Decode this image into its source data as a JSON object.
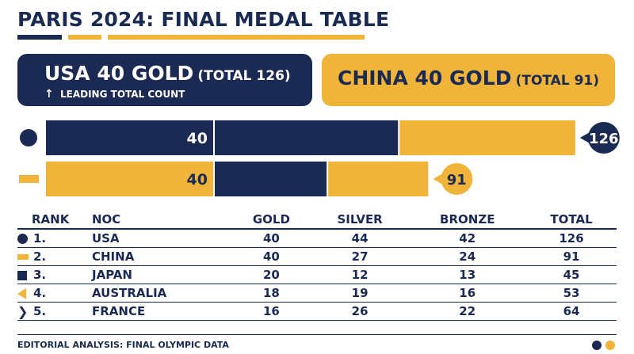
{
  "title": "PARIS 2024: FINAL MEDAL TABLE",
  "colors": {
    "navy": "#1b2a52",
    "gold": "#f0b43a",
    "white": "#ffffff"
  },
  "cards": {
    "usa": {
      "headline": "USA 40 GOLD",
      "total": "(TOTAL 126)",
      "subtitle": "LEADING TOTAL COUNT",
      "icon": "arrow-up-icon"
    },
    "china": {
      "headline": "CHINA 40 GOLD",
      "total": "(TOTAL 91)"
    }
  },
  "chart_data": {
    "type": "bar",
    "orientation": "horizontal",
    "stacked": true,
    "categories": [
      "USA",
      "CHINA"
    ],
    "series": [
      {
        "name": "GOLD",
        "values": [
          40,
          40
        ]
      },
      {
        "name": "SILVER",
        "values": [
          44,
          27
        ]
      },
      {
        "name": "BRONZE",
        "values": [
          42,
          24
        ]
      }
    ],
    "totals": [
      126,
      91
    ],
    "data_labels": [
      "40",
      "40"
    ],
    "total_labels": [
      "126",
      "91"
    ],
    "grid": false,
    "legend": "none"
  },
  "table": {
    "headers": {
      "rank": "RANK",
      "noc": "NOC",
      "gold": "GOLD",
      "silver": "SILVER",
      "bronze": "BRONZE",
      "total": "TOTAL"
    },
    "rows": [
      {
        "icon": "circle-icon",
        "rank": "1.",
        "noc": "USA",
        "gold": "40",
        "silver": "44",
        "bronze": "42",
        "total": "126"
      },
      {
        "icon": "bar-icon",
        "rank": "2.",
        "noc": "CHINA",
        "gold": "40",
        "silver": "27",
        "bronze": "24",
        "total": "91"
      },
      {
        "icon": "square-icon",
        "rank": "3.",
        "noc": "JAPAN",
        "gold": "20",
        "silver": "12",
        "bronze": "13",
        "total": "45"
      },
      {
        "icon": "triangle-icon",
        "rank": "4.",
        "noc": "AUSTRALIA",
        "gold": "18",
        "silver": "19",
        "bronze": "16",
        "total": "53"
      },
      {
        "icon": "chevron-icon",
        "rank": "5.",
        "noc": "FRANCE",
        "gold": "16",
        "silver": "26",
        "bronze": "22",
        "total": "64"
      }
    ]
  },
  "footer": "EDITORIAL ANALYSIS: FINAL OLYMPIC DATA"
}
